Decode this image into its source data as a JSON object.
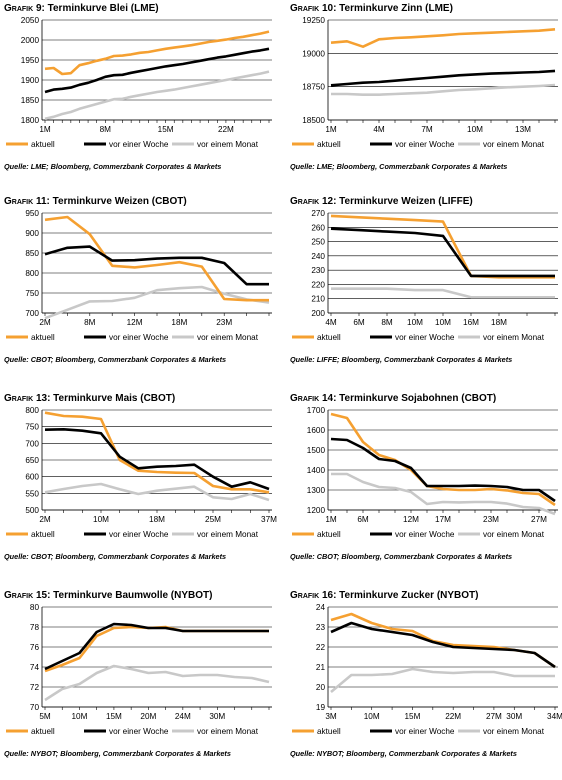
{
  "colors": {
    "aktuell": "#f5a031",
    "vor_einer_woche": "#000000",
    "vor_einem_monat": "#c8c8c8",
    "gridline": "#000000"
  },
  "charts": [
    {
      "title_prefix": "Grafik 9:",
      "title_main": "Terminkurve Blei (LME)",
      "source": "Quelle: LME; Bloomberg, Commerzbank Corporates & Markets",
      "legend": [
        "aktuell",
        "vor einer Woche",
        "vor einem Monat"
      ],
      "chart_data": {
        "type": "line",
        "ylim": [
          1800,
          2050
        ],
        "yticks": [
          1800,
          1850,
          1900,
          1950,
          2000,
          2050
        ],
        "xcount": 27,
        "xtick_labels": [
          {
            "i": 0,
            "label": "1M"
          },
          {
            "i": 7,
            "label": "8M"
          },
          {
            "i": 14,
            "label": "15M"
          },
          {
            "i": 21,
            "label": "22M"
          }
        ],
        "series": [
          {
            "name": "aktuell",
            "values": [
              1928,
              1930,
              1915,
              1917,
              1937,
              1942,
              1948,
              1953,
              1960,
              1961,
              1964,
              1968,
              1970,
              1974,
              1978,
              1981,
              1984,
              1987,
              1991,
              1995,
              1998,
              2001,
              2005,
              2008,
              2012,
              2016,
              2021
            ]
          },
          {
            "name": "vor einer Woche",
            "values": [
              1870,
              1876,
              1878,
              1881,
              1888,
              1893,
              1900,
              1908,
              1912,
              1913,
              1918,
              1922,
              1926,
              1930,
              1934,
              1937,
              1940,
              1944,
              1948,
              1952,
              1956,
              1959,
              1963,
              1967,
              1971,
              1974,
              1978
            ]
          },
          {
            "name": "vor einem Monat",
            "values": [
              1803,
              1808,
              1815,
              1820,
              1828,
              1834,
              1840,
              1846,
              1852,
              1853,
              1858,
              1862,
              1866,
              1870,
              1873,
              1876,
              1880,
              1884,
              1888,
              1892,
              1896,
              1900,
              1904,
              1908,
              1912,
              1916,
              1921
            ]
          }
        ]
      }
    },
    {
      "title_prefix": "Grafik 10:",
      "title_main": "Terminkurve Zinn (LME)",
      "source": "Quelle: LME; Bloomberg, Commerzbank Corporates & Markets",
      "legend": [
        "aktuell",
        "vor einer Woche",
        "vor einem Monat"
      ],
      "chart_data": {
        "type": "line",
        "ylim": [
          18500,
          19250
        ],
        "yticks": [
          18500,
          18750,
          19000,
          19250
        ],
        "xcount": 15,
        "xtick_labels": [
          {
            "i": 0,
            "label": "1M"
          },
          {
            "i": 3,
            "label": "4M"
          },
          {
            "i": 6,
            "label": "7M"
          },
          {
            "i": 9,
            "label": "10M"
          },
          {
            "i": 12,
            "label": "13M"
          }
        ],
        "series": [
          {
            "name": "aktuell",
            "values": [
              19080,
              19090,
              19050,
              19105,
              19115,
              19120,
              19128,
              19135,
              19145,
              19150,
              19155,
              19160,
              19165,
              19170,
              19180
            ]
          },
          {
            "name": "vor einer Woche",
            "values": [
              18760,
              18770,
              18780,
              18785,
              18795,
              18805,
              18815,
              18825,
              18835,
              18842,
              18848,
              18852,
              18856,
              18860,
              18868
            ]
          },
          {
            "name": "vor einem Monat",
            "values": [
              18695,
              18695,
              18690,
              18690,
              18695,
              18700,
              18705,
              18715,
              18725,
              18730,
              18738,
              18745,
              18750,
              18755,
              18762
            ]
          }
        ]
      }
    },
    {
      "title_prefix": "Grafik 11:",
      "title_main": "Terminkurve Weizen (CBOT)",
      "source": "Quelle: CBOT; Bloomberg, Commerzbank Corporates & Markets",
      "legend": [
        "aktuell",
        "vor einer Woche",
        "vor einem Monat"
      ],
      "chart_data": {
        "type": "line",
        "ylim": [
          700,
          950
        ],
        "yticks": [
          700,
          750,
          800,
          850,
          900,
          950
        ],
        "xcount": 11,
        "xtick_labels": [
          {
            "i": 0,
            "label": "2M"
          },
          {
            "i": 2,
            "label": "8M"
          },
          {
            "i": 4,
            "label": "12M"
          },
          {
            "i": 6,
            "label": "18M"
          },
          {
            "i": 8,
            "label": "23M"
          }
        ],
        "series": [
          {
            "name": "aktuell",
            "values": [
              933,
              940,
              897,
              818,
              814,
              820,
              827,
              816,
              735,
              732,
              732
            ]
          },
          {
            "name": "vor einer Woche",
            "values": [
              847,
              863,
              866,
              831,
              832,
              836,
              838,
              838,
              825,
              772,
              772
            ]
          },
          {
            "name": "vor einem Monat",
            "values": [
              687,
              708,
              729,
              730,
              738,
              757,
              762,
              765,
              748,
              734,
              726
            ]
          }
        ]
      }
    },
    {
      "title_prefix": "Grafik 12:",
      "title_main": "Terminkurve Weizen (LIFFE)",
      "source": "Quelle: LIFFE; Bloomberg, Commerzbank Corporates & Markets",
      "legend": [
        "aktuell",
        "vor einer Woche",
        "vor einem Monat"
      ],
      "chart_data": {
        "type": "line",
        "ylim": [
          200,
          270
        ],
        "yticks": [
          200,
          210,
          220,
          230,
          240,
          250,
          260,
          270
        ],
        "xcount": 9,
        "xtick_labels": [
          {
            "i": 0,
            "label": "4M"
          },
          {
            "i": 1,
            "label": "6M"
          },
          {
            "i": 2,
            "label": "8M"
          },
          {
            "i": 3,
            "label": "10M"
          },
          {
            "i": 4,
            "label": "10M"
          },
          {
            "i": 5,
            "label": "16M"
          },
          {
            "i": 6,
            "label": "18M"
          }
        ],
        "series": [
          {
            "name": "aktuell",
            "values": [
              268,
              267,
              266,
              265,
              264,
              226,
              225,
              225,
              225
            ]
          },
          {
            "name": "vor einer Woche",
            "values": [
              259,
              258,
              257,
              256,
              254,
              226,
              226,
              226,
              226
            ]
          },
          {
            "name": "vor einem Monat",
            "values": [
              217,
              217,
              217,
              216,
              216,
              211,
              211,
              211,
              211
            ]
          }
        ]
      }
    },
    {
      "title_prefix": "Grafik 13:",
      "title_main": "Terminkurve Mais (CBOT)",
      "source": "Quelle: CBOT; Bloomberg, Commerzbank Corporates & Markets",
      "legend": [
        "aktuell",
        "vor einer Woche",
        "vor einem Monat"
      ],
      "chart_data": {
        "type": "line",
        "ylim": [
          500,
          800
        ],
        "yticks": [
          500,
          550,
          600,
          650,
          700,
          750,
          800
        ],
        "xcount": 13,
        "xtick_labels": [
          {
            "i": 0,
            "label": "2M"
          },
          {
            "i": 3,
            "label": "10M"
          },
          {
            "i": 6,
            "label": "18M"
          },
          {
            "i": 9,
            "label": "25M"
          },
          {
            "i": 12,
            "label": "37M"
          }
        ],
        "series": [
          {
            "name": "aktuell",
            "values": [
              792,
              782,
              780,
              773,
              650,
              618,
              614,
              612,
              611,
              572,
              562,
              562,
              553
            ]
          },
          {
            "name": "vor einer Woche",
            "values": [
              741,
              742,
              738,
              730,
              660,
              625,
              630,
              632,
              636,
              600,
              570,
              583,
              563
            ]
          },
          {
            "name": "vor einem Monat",
            "values": [
              553,
              563,
              572,
              578,
              562,
              548,
              558,
              564,
              570,
              538,
              533,
              548,
              530
            ]
          }
        ]
      }
    },
    {
      "title_prefix": "Grafik 14:",
      "title_main": "Terminkurve Sojabohnen (CBOT)",
      "source": "Quelle: CBOT; Bloomberg, Commerzbank Corporates & Markets",
      "legend": [
        "aktuell",
        "vor einer Woche",
        "vor einem Monat"
      ],
      "chart_data": {
        "type": "line",
        "ylim": [
          1200,
          1700
        ],
        "yticks": [
          1200,
          1300,
          1400,
          1500,
          1600,
          1700
        ],
        "xcount": 15,
        "xtick_labels": [
          {
            "i": 0,
            "label": "1M"
          },
          {
            "i": 2,
            "label": "6M"
          },
          {
            "i": 5,
            "label": "12M"
          },
          {
            "i": 7,
            "label": "17M"
          },
          {
            "i": 10,
            "label": "23M"
          },
          {
            "i": 13,
            "label": "27M"
          }
        ],
        "series": [
          {
            "name": "aktuell",
            "values": [
              1680,
              1660,
              1540,
              1475,
              1450,
              1400,
              1320,
              1305,
              1300,
              1300,
              1305,
              1298,
              1285,
              1280,
              1225
            ]
          },
          {
            "name": "vor einer Woche",
            "values": [
              1555,
              1550,
              1510,
              1455,
              1445,
              1410,
              1320,
              1320,
              1320,
              1322,
              1320,
              1315,
              1300,
              1300,
              1245
            ]
          },
          {
            "name": "vor einem Monat",
            "values": [
              1380,
              1380,
              1340,
              1315,
              1310,
              1290,
              1230,
              1240,
              1238,
              1240,
              1240,
              1232,
              1215,
              1210,
              1180
            ]
          }
        ]
      }
    },
    {
      "title_prefix": "Grafik 15:",
      "title_main": "Terminkurve Baumwolle (NYBOT)",
      "source": "Quelle: NYBOT; Bloomberg, Commerzbank Corporates & Markets",
      "legend": [
        "aktuell",
        "vor einer Woche",
        "vor einem Monat"
      ],
      "chart_data": {
        "type": "line",
        "ylim": [
          70,
          80
        ],
        "yticks": [
          70,
          72,
          74,
          76,
          78,
          80
        ],
        "xcount": 14,
        "xtick_labels": [
          {
            "i": 0,
            "label": "5M"
          },
          {
            "i": 2,
            "label": "10M"
          },
          {
            "i": 4,
            "label": "15M"
          },
          {
            "i": 6,
            "label": "20M"
          },
          {
            "i": 8,
            "label": "24M"
          },
          {
            "i": 10,
            "label": "30M"
          }
        ],
        "series": [
          {
            "name": "aktuell",
            "values": [
              73.6,
              74.2,
              74.9,
              77.1,
              77.9,
              78.0,
              77.9,
              78.0,
              77.6,
              77.6,
              77.6,
              77.6,
              77.6,
              77.6
            ]
          },
          {
            "name": "vor einer Woche",
            "values": [
              73.8,
              74.6,
              75.4,
              77.5,
              78.3,
              78.2,
              77.9,
              77.9,
              77.6,
              77.6,
              77.6,
              77.6,
              77.6,
              77.6
            ]
          },
          {
            "name": "vor einem Monat",
            "values": [
              70.7,
              71.8,
              72.3,
              73.4,
              74.1,
              73.8,
              73.4,
              73.5,
              73.1,
              73.2,
              73.2,
              73.0,
              72.9,
              72.5
            ]
          }
        ]
      }
    },
    {
      "title_prefix": "Grafik 16:",
      "title_main": "Terminkurve Zucker (NYBOT)",
      "source": "Quelle: NYBOT; Bloomberg, Commerzbank Corporates & Markets",
      "legend": [
        "aktuell",
        "vor einer Woche",
        "vor einem Monat"
      ],
      "chart_data": {
        "type": "line",
        "ylim": [
          19.0,
          24.0
        ],
        "yticks": [
          19.0,
          20.0,
          21.0,
          22.0,
          23.0,
          24.0
        ],
        "xcount": 12,
        "xtick_labels": [
          {
            "i": 0,
            "label": "3M"
          },
          {
            "i": 2,
            "label": "10M"
          },
          {
            "i": 4,
            "label": "15M"
          },
          {
            "i": 6,
            "label": "22M"
          },
          {
            "i": 8,
            "label": "27M"
          },
          {
            "i": 9,
            "label": "30M"
          },
          {
            "i": 11,
            "label": "34M"
          }
        ],
        "series": [
          {
            "name": "aktuell",
            "values": [
              23.35,
              23.65,
              23.2,
              22.9,
              22.8,
              22.3,
              22.1,
              22.05,
              22.0,
              21.85,
              21.7,
              21.0
            ]
          },
          {
            "name": "vor einer Woche",
            "values": [
              22.75,
              23.2,
              22.9,
              22.75,
              22.6,
              22.25,
              22.0,
              21.95,
              21.9,
              21.85,
              21.7,
              21.0
            ]
          },
          {
            "name": "vor einem Monat",
            "values": [
              19.75,
              20.6,
              20.6,
              20.65,
              20.9,
              20.75,
              20.7,
              20.75,
              20.75,
              20.55,
              20.55,
              20.55
            ]
          }
        ]
      }
    }
  ]
}
